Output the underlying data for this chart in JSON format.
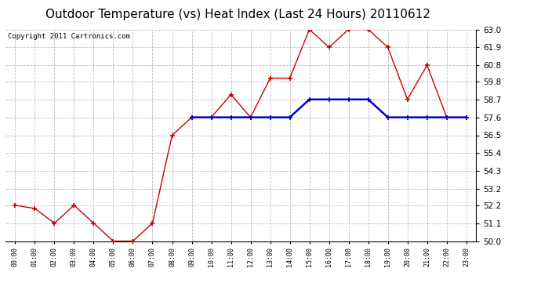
{
  "title": "Outdoor Temperature (vs) Heat Index (Last 24 Hours) 20110612",
  "copyright": "Copyright 2011 Cartronics.com",
  "x_labels": [
    "00:00",
    "01:00",
    "02:00",
    "03:00",
    "04:00",
    "05:00",
    "06:00",
    "07:00",
    "08:00",
    "09:00",
    "10:00",
    "11:00",
    "12:00",
    "13:00",
    "14:00",
    "15:00",
    "16:00",
    "17:00",
    "18:00",
    "19:00",
    "20:00",
    "21:00",
    "22:00",
    "23:00"
  ],
  "red_values": [
    52.2,
    52.0,
    51.1,
    52.2,
    51.1,
    50.0,
    50.0,
    51.1,
    56.5,
    57.6,
    57.6,
    59.0,
    57.6,
    60.0,
    60.0,
    63.0,
    61.9,
    63.0,
    63.0,
    61.9,
    58.7,
    60.8,
    57.6,
    57.6
  ],
  "blue_values": [
    null,
    null,
    null,
    null,
    null,
    null,
    null,
    null,
    null,
    57.6,
    57.6,
    57.6,
    57.6,
    57.6,
    57.6,
    58.7,
    58.7,
    58.7,
    58.7,
    57.6,
    57.6,
    57.6,
    57.6,
    57.6
  ],
  "ylim": [
    50.0,
    63.0
  ],
  "yticks": [
    50.0,
    51.1,
    52.2,
    53.2,
    54.3,
    55.4,
    56.5,
    57.6,
    58.7,
    59.8,
    60.8,
    61.9,
    63.0
  ],
  "bg_color": "#ffffff",
  "plot_bg": "#ffffff",
  "grid_color": "#bbbbbb",
  "red_color": "#cc0000",
  "blue_color": "#0000cc",
  "title_fontsize": 11,
  "copyright_fontsize": 6.5,
  "tick_fontsize": 7.5,
  "xtick_fontsize": 6
}
